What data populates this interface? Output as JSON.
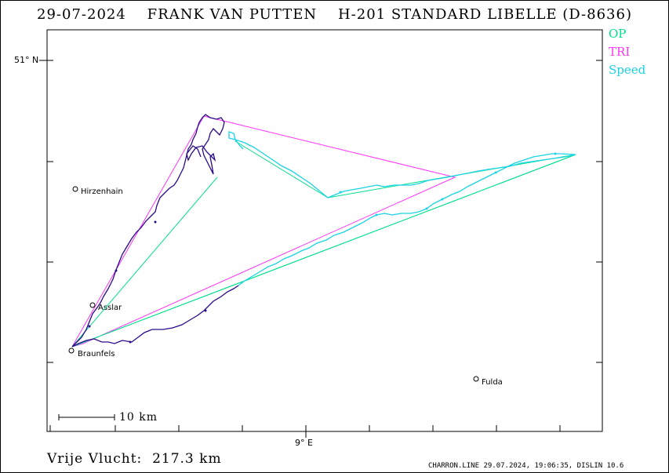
{
  "header": {
    "title": "29-07-2024    FRANK VAN PUTTEN    H-201 STANDARD LIBELLE (D-8636)"
  },
  "legend": [
    {
      "label": "OP",
      "color": "#00e08a"
    },
    {
      "label": "TRI",
      "color": "#ff33ff"
    },
    {
      "label": "Speed",
      "color": "#19d3e6"
    }
  ],
  "axes": {
    "lat_label": "51° N",
    "lon_label": "9° E"
  },
  "places": [
    {
      "name": "Hirzenhain"
    },
    {
      "name": "Asslar"
    },
    {
      "name": "Braunfels"
    },
    {
      "name": "Fulda"
    }
  ],
  "scale": {
    "label": "10 km"
  },
  "footer": {
    "distance": "Vrije Vlucht:  217.3 km",
    "credit": "CHARRON.LINE 29.07.2024, 19:06:35, DISLIN 10.6"
  },
  "colors": {
    "track_dark": "#2b0a8a",
    "track_speed": "#19d3e6",
    "op": "#00e08a",
    "tri": "#ff33ff"
  }
}
